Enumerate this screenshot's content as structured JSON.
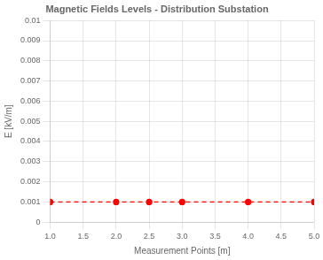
{
  "chart_data": {
    "type": "line",
    "title": "Magnetic Fields Levels - Distribution Substation",
    "xlabel": "Measurement Points [m]",
    "ylabel": "E [kV/m]",
    "x": [
      1,
      2,
      2.5,
      3,
      4,
      5
    ],
    "values": [
      0.001,
      0.001,
      0.001,
      0.001,
      0.001,
      0.001
    ],
    "color": "#ff0000",
    "marker": "circle",
    "line_style": "dashed",
    "xlim": [
      1,
      5
    ],
    "ylim": [
      0,
      0.01
    ],
    "xticks": [
      {
        "value": 1,
        "label": "1.0"
      },
      {
        "value": 1.5,
        "label": "1.5"
      },
      {
        "value": 2,
        "label": "2.0"
      },
      {
        "value": 2.5,
        "label": "2.5"
      },
      {
        "value": 3,
        "label": "3.0"
      },
      {
        "value": 3.5,
        "label": "3.5"
      },
      {
        "value": 4,
        "label": "4.0"
      },
      {
        "value": 4.5,
        "label": "4.5"
      },
      {
        "value": 5,
        "label": "5.0"
      }
    ],
    "yticks": [
      0,
      0.001,
      0.002,
      0.003,
      0.004,
      0.005,
      0.006,
      0.007,
      0.008,
      0.009,
      0.01
    ],
    "grid": true
  }
}
